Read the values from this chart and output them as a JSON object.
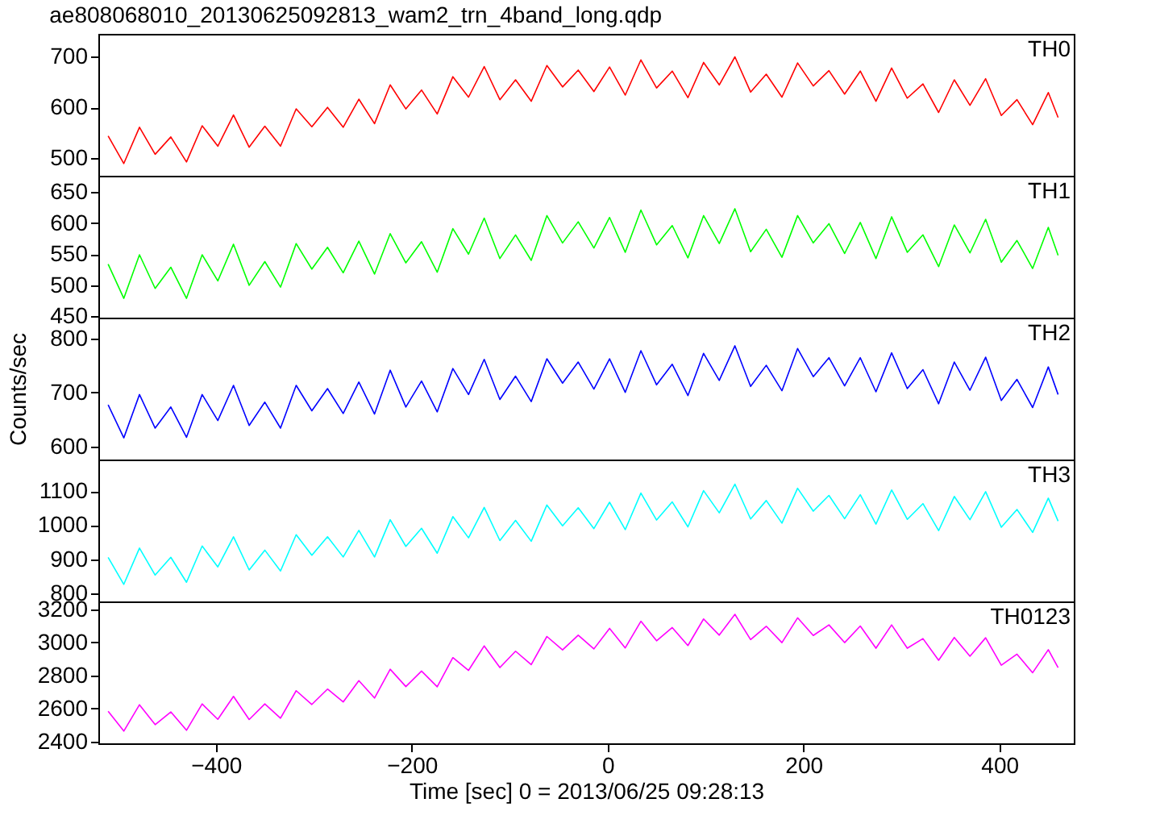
{
  "chart_data": [
    {
      "type": "line",
      "title": "ae808068010_20130625092813_wam2_trn_4band_long.qdp",
      "x": [
        -510,
        -494,
        -478,
        -462,
        -446,
        -430,
        -414,
        -398,
        -382,
        -366,
        -350,
        -334,
        -318,
        -302,
        -286,
        -270,
        -254,
        -238,
        -222,
        -206,
        -190,
        -174,
        -158,
        -142,
        -126,
        -110,
        -94,
        -78,
        -62,
        -46,
        -30,
        -14,
        2,
        18,
        34,
        50,
        66,
        82,
        98,
        114,
        130,
        146,
        162,
        178,
        194,
        210,
        226,
        242,
        258,
        274,
        290,
        306,
        322,
        338,
        354,
        370,
        386,
        402,
        418,
        434,
        450,
        460
      ],
      "xlim": [
        -520,
        476
      ],
      "xticks": [
        -400,
        -200,
        0,
        200,
        400
      ],
      "ylim": [
        466,
        744
      ],
      "yticks": [
        500,
        600,
        700
      ],
      "tick_labels": "y",
      "series": [
        {
          "name": "TH0",
          "color": "#ff0000",
          "values": [
            544,
            490,
            561,
            508,
            542,
            493,
            564,
            524,
            585,
            522,
            563,
            524,
            597,
            562,
            600,
            561,
            616,
            568,
            644,
            597,
            634,
            587,
            660,
            620,
            680,
            615,
            654,
            612,
            682,
            640,
            673,
            631,
            679,
            624,
            693,
            638,
            671,
            619,
            688,
            644,
            699,
            630,
            665,
            620,
            687,
            642,
            672,
            626,
            671,
            612,
            677,
            618,
            646,
            590,
            654,
            604,
            656,
            584,
            615,
            566,
            629,
            580
          ]
        }
      ]
    },
    {
      "type": "line",
      "x": [
        -510,
        -494,
        -478,
        -462,
        -446,
        -430,
        -414,
        -398,
        -382,
        -366,
        -350,
        -334,
        -318,
        -302,
        -286,
        -270,
        -254,
        -238,
        -222,
        -206,
        -190,
        -174,
        -158,
        -142,
        -126,
        -110,
        -94,
        -78,
        -62,
        -46,
        -30,
        -14,
        2,
        18,
        34,
        50,
        66,
        82,
        98,
        114,
        130,
        146,
        162,
        178,
        194,
        210,
        226,
        242,
        258,
        274,
        290,
        306,
        322,
        338,
        354,
        370,
        386,
        402,
        418,
        434,
        450,
        460
      ],
      "xlim": [
        -520,
        476
      ],
      "xticks": [
        -400,
        -200,
        0,
        200,
        400
      ],
      "ylim": [
        448,
        676
      ],
      "yticks": [
        450,
        500,
        550,
        600,
        650
      ],
      "tick_labels": "y",
      "series": [
        {
          "name": "TH1",
          "color": "#00ff00",
          "values": [
            534,
            479,
            549,
            495,
            529,
            479,
            549,
            507,
            566,
            500,
            538,
            497,
            567,
            526,
            561,
            520,
            571,
            518,
            583,
            536,
            570,
            521,
            591,
            550,
            608,
            543,
            581,
            540,
            612,
            568,
            602,
            560,
            609,
            553,
            621,
            565,
            596,
            544,
            612,
            567,
            623,
            554,
            590,
            545,
            612,
            568,
            599,
            551,
            601,
            543,
            610,
            553,
            581,
            530,
            597,
            552,
            606,
            537,
            572,
            527,
            593,
            548
          ]
        }
      ]
    },
    {
      "type": "line",
      "ylabel": "Counts/sec",
      "x": [
        -510,
        -494,
        -478,
        -462,
        -446,
        -430,
        -414,
        -398,
        -382,
        -366,
        -350,
        -334,
        -318,
        -302,
        -286,
        -270,
        -254,
        -238,
        -222,
        -206,
        -190,
        -174,
        -158,
        -142,
        -126,
        -110,
        -94,
        -78,
        -62,
        -46,
        -30,
        -14,
        2,
        18,
        34,
        50,
        66,
        82,
        98,
        114,
        130,
        146,
        162,
        178,
        194,
        210,
        226,
        242,
        258,
        274,
        290,
        306,
        322,
        338,
        354,
        370,
        386,
        402,
        418,
        434,
        450,
        460
      ],
      "xlim": [
        -520,
        476
      ],
      "xticks": [
        -400,
        -200,
        0,
        200,
        400
      ],
      "ylim": [
        576,
        838
      ],
      "yticks": [
        600,
        700,
        800
      ],
      "tick_labels": "y",
      "series": [
        {
          "name": "TH2",
          "color": "#0000ff",
          "values": [
            677,
            616,
            696,
            634,
            673,
            617,
            696,
            648,
            713,
            639,
            682,
            634,
            713,
            666,
            707,
            661,
            719,
            660,
            741,
            673,
            721,
            664,
            744,
            696,
            761,
            687,
            730,
            683,
            762,
            717,
            756,
            706,
            762,
            700,
            777,
            714,
            752,
            694,
            772,
            722,
            786,
            711,
            750,
            703,
            781,
            729,
            764,
            712,
            764,
            701,
            773,
            707,
            742,
            679,
            756,
            704,
            765,
            685,
            724,
            672,
            747,
            696
          ]
        }
      ]
    },
    {
      "type": "line",
      "x": [
        -510,
        -494,
        -478,
        -462,
        -446,
        -430,
        -414,
        -398,
        -382,
        -366,
        -350,
        -334,
        -318,
        -302,
        -286,
        -270,
        -254,
        -238,
        -222,
        -206,
        -190,
        -174,
        -158,
        -142,
        -126,
        -110,
        -94,
        -78,
        -62,
        -46,
        -30,
        -14,
        2,
        18,
        34,
        50,
        66,
        82,
        98,
        114,
        130,
        146,
        162,
        178,
        194,
        210,
        226,
        242,
        258,
        274,
        290,
        306,
        322,
        338,
        354,
        370,
        386,
        402,
        418,
        434,
        450,
        460
      ],
      "xlim": [
        -520,
        476
      ],
      "xticks": [
        -400,
        -200,
        0,
        200,
        400
      ],
      "ylim": [
        777,
        1192
      ],
      "yticks": [
        800,
        900,
        1000,
        1100
      ],
      "tick_labels": "y",
      "series": [
        {
          "name": "TH3",
          "color": "#00ffff",
          "values": [
            906,
            827,
            933,
            854,
            906,
            833,
            939,
            878,
            966,
            869,
            927,
            866,
            972,
            912,
            966,
            907,
            985,
            907,
            1016,
            938,
            991,
            918,
            1025,
            963,
            1052,
            955,
            1014,
            953,
            1059,
            998,
            1051,
            990,
            1067,
            987,
            1094,
            1015,
            1068,
            995,
            1101,
            1036,
            1120,
            1018,
            1072,
            1006,
            1108,
            1041,
            1087,
            1019,
            1089,
            1003,
            1103,
            1017,
            1063,
            984,
            1084,
            1016,
            1098,
            994,
            1046,
            979,
            1079,
            1012
          ]
        }
      ]
    },
    {
      "type": "line",
      "xlabel": "Time [sec] 0 = 2013/06/25 09:28:13",
      "x": [
        -510,
        -494,
        -478,
        -462,
        -446,
        -430,
        -414,
        -398,
        -382,
        -366,
        -350,
        -334,
        -318,
        -302,
        -286,
        -270,
        -254,
        -238,
        -222,
        -206,
        -190,
        -174,
        -158,
        -142,
        -126,
        -110,
        -94,
        -78,
        -62,
        -46,
        -30,
        -14,
        2,
        18,
        34,
        50,
        66,
        82,
        98,
        114,
        130,
        146,
        162,
        178,
        194,
        210,
        226,
        242,
        258,
        274,
        290,
        306,
        322,
        338,
        354,
        370,
        386,
        402,
        418,
        434,
        450,
        460
      ],
      "xlim": [
        -520,
        476
      ],
      "xticks": [
        -400,
        -200,
        0,
        200,
        400
      ],
      "ylim": [
        2390,
        3248
      ],
      "yticks": [
        2400,
        2600,
        2800,
        3000,
        3200
      ],
      "series": [
        {
          "name": "TH0123",
          "color": "#ff00ff",
          "values": [
            2584,
            2464,
            2623,
            2503,
            2580,
            2469,
            2628,
            2535,
            2674,
            2534,
            2628,
            2542,
            2708,
            2625,
            2718,
            2640,
            2769,
            2664,
            2838,
            2733,
            2827,
            2732,
            2908,
            2831,
            2979,
            2848,
            2947,
            2866,
            3036,
            2955,
            3044,
            2961,
            3085,
            2967,
            3128,
            3010,
            3090,
            2981,
            3142,
            3044,
            3170,
            3017,
            3098,
            2999,
            3149,
            3042,
            3106,
            2999,
            3099,
            2965,
            3106,
            2965,
            3023,
            2892,
            3030,
            2917,
            3028,
            2862,
            2929,
            2817,
            2956,
            2848
          ]
        }
      ]
    }
  ]
}
